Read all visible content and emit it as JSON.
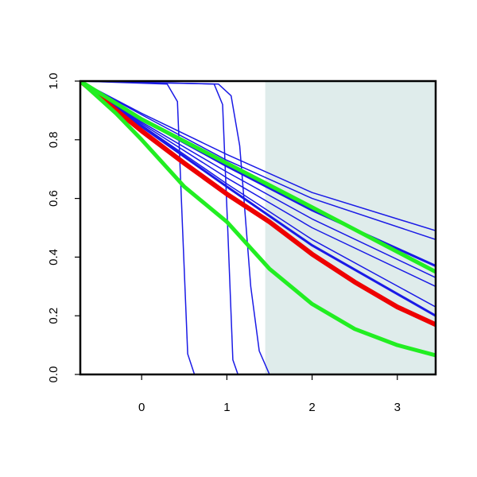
{
  "chart_data": {
    "type": "line",
    "title": "",
    "xlabel": "",
    "ylabel": "",
    "xlim": [
      -0.72,
      3.45
    ],
    "ylim": [
      0,
      1
    ],
    "x_ticks": [
      0,
      1,
      2,
      3
    ],
    "x_tick_labels": [
      "0",
      "1",
      "2",
      "3"
    ],
    "y_ticks": [
      0,
      0.2,
      0.4,
      0.6,
      0.8,
      1
    ],
    "y_tick_labels": [
      "0.0",
      "0.2",
      "0.4",
      "0.6",
      "0.8",
      "1.0"
    ],
    "grid": false,
    "legend": "none",
    "shaded_region": {
      "x_from": 1.45,
      "x_to": 3.45,
      "color": "#dfeceb"
    },
    "colors": {
      "blue": "#1a1ae6",
      "red": "#ee0000",
      "green": "#22ee22",
      "axis": "#000000"
    },
    "series": [
      {
        "color": "#1a1ae6",
        "width": 1.5,
        "x": [
          -0.72,
          0.3,
          0.42,
          0.48,
          0.54,
          0.62,
          3.45
        ],
        "y": [
          1.0,
          0.99,
          0.93,
          0.5,
          0.07,
          0.0,
          0.0
        ]
      },
      {
        "color": "#1a1ae6",
        "width": 1.5,
        "x": [
          -0.72,
          0.85,
          0.95,
          1.01,
          1.07,
          1.13,
          3.45
        ],
        "y": [
          1.0,
          0.99,
          0.92,
          0.5,
          0.05,
          0.0,
          0.0
        ]
      },
      {
        "color": "#1a1ae6",
        "width": 1.5,
        "x": [
          -0.72,
          0.9,
          1.05,
          1.15,
          1.2,
          1.28,
          1.38,
          1.5,
          3.45
        ],
        "y": [
          1.0,
          0.99,
          0.95,
          0.78,
          0.6,
          0.3,
          0.08,
          0.0,
          0.0
        ]
      },
      {
        "color": "#1a1ae6",
        "width": 1.5,
        "x": [
          -0.72,
          0.0,
          1.0,
          2.0,
          3.45
        ],
        "y": [
          1.0,
          0.89,
          0.75,
          0.62,
          0.49
        ]
      },
      {
        "color": "#1a1ae6",
        "width": 1.5,
        "x": [
          -0.72,
          0.0,
          1.0,
          2.0,
          3.45
        ],
        "y": [
          1.0,
          0.885,
          0.73,
          0.6,
          0.46
        ]
      },
      {
        "color": "#1a1ae6",
        "width": 3,
        "x": [
          -0.72,
          0.0,
          1.0,
          2.0,
          3.45
        ],
        "y": [
          1.0,
          0.87,
          0.71,
          0.56,
          0.37
        ]
      },
      {
        "color": "#1a1ae6",
        "width": 1.5,
        "x": [
          -0.72,
          0.0,
          1.0,
          2.0,
          3.45
        ],
        "y": [
          1.0,
          0.86,
          0.69,
          0.53,
          0.33
        ]
      },
      {
        "color": "#1a1ae6",
        "width": 1.5,
        "x": [
          -0.72,
          0.0,
          1.0,
          2.0,
          3.45
        ],
        "y": [
          1.0,
          0.855,
          0.67,
          0.5,
          0.3
        ]
      },
      {
        "color": "#1a1ae6",
        "width": 1.5,
        "x": [
          -0.72,
          0.0,
          1.0,
          2.0,
          3.45
        ],
        "y": [
          1.0,
          0.85,
          0.65,
          0.46,
          0.23
        ]
      },
      {
        "color": "#1a1ae6",
        "width": 3,
        "x": [
          -0.72,
          0.0,
          1.0,
          2.0,
          3.45
        ],
        "y": [
          1.0,
          0.845,
          0.64,
          0.44,
          0.2
        ]
      },
      {
        "color": "#ee0000",
        "width": 6,
        "x": [
          -0.72,
          0.0,
          0.5,
          1.0,
          1.5,
          2.0,
          2.5,
          3.0,
          3.45
        ],
        "y": [
          1.0,
          0.83,
          0.72,
          0.615,
          0.52,
          0.41,
          0.315,
          0.23,
          0.17
        ]
      },
      {
        "color": "#22ee22",
        "width": 5,
        "x": [
          -0.72,
          0.0,
          1.0,
          2.0,
          3.45
        ],
        "y": [
          1.0,
          0.87,
          0.72,
          0.57,
          0.35
        ]
      },
      {
        "color": "#22ee22",
        "width": 5,
        "x": [
          -0.72,
          -0.3,
          0.0,
          0.5,
          1.0,
          1.5,
          2.0,
          2.5,
          3.0,
          3.45
        ],
        "y": [
          1.0,
          0.89,
          0.8,
          0.64,
          0.52,
          0.36,
          0.24,
          0.155,
          0.1,
          0.065
        ]
      }
    ]
  }
}
